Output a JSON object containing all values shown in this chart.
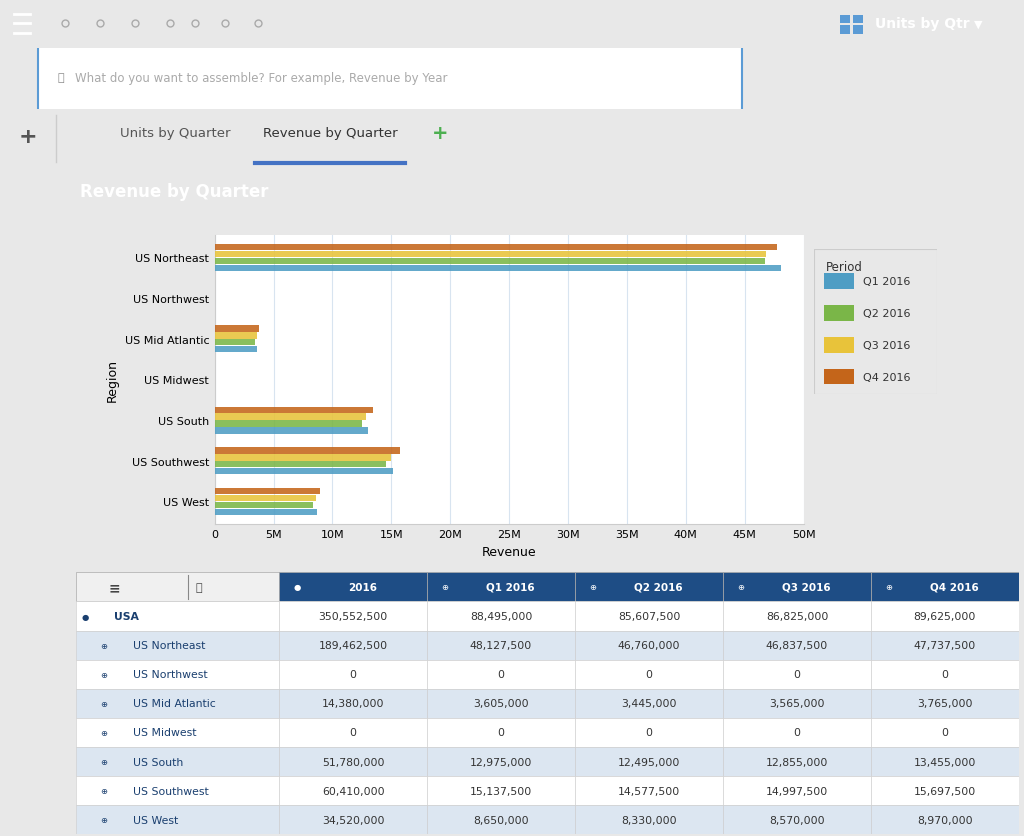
{
  "chart_title": "Revenue by Quarter",
  "tab1": "Units by Quarter",
  "tab2": "Revenue by Quarter",
  "toolbar_title": "Units by Qtr",
  "search_placeholder": "What do you want to assemble? For example, Revenue by Year",
  "regions": [
    "US Northeast",
    "US Northwest",
    "US Mid Atlantic",
    "US Midwest",
    "US South",
    "US Southwest",
    "US West"
  ],
  "quarters": [
    "Q1 2016",
    "Q2 2016",
    "Q3 2016",
    "Q4 2016"
  ],
  "quarter_colors": [
    "#4e9dc4",
    "#7ab648",
    "#e8c33a",
    "#c4651a"
  ],
  "data": {
    "US West": [
      8650000,
      8330000,
      8570000,
      8970000
    ],
    "US Southwest": [
      15137500,
      14577500,
      14997500,
      15697500
    ],
    "US South": [
      12975000,
      12495000,
      12855000,
      13455000
    ],
    "US Midwest": [
      0,
      0,
      0,
      0
    ],
    "US Mid Atlantic": [
      3605000,
      3445000,
      3565000,
      3765000
    ],
    "US Northwest": [
      0,
      0,
      0,
      0
    ],
    "US Northeast": [
      48127500,
      46760000,
      46837500,
      47737500
    ]
  },
  "table_headers": [
    "2016",
    "Q1 2016",
    "Q2 2016",
    "Q3 2016",
    "Q4 2016"
  ],
  "table_rows": [
    [
      "USA",
      "350,552,500",
      "88,495,000",
      "85,607,500",
      "86,825,000",
      "89,625,000"
    ],
    [
      "US Northeast",
      "189,462,500",
      "48,127,500",
      "46,760,000",
      "46,837,500",
      "47,737,500"
    ],
    [
      "US Northwest",
      "0",
      "0",
      "0",
      "0",
      "0"
    ],
    [
      "US Mid Atlantic",
      "14,380,000",
      "3,605,000",
      "3,445,000",
      "3,565,000",
      "3,765,000"
    ],
    [
      "US Midwest",
      "0",
      "0",
      "0",
      "0",
      "0"
    ],
    [
      "US South",
      "51,780,000",
      "12,975,000",
      "12,495,000",
      "12,855,000",
      "13,455,000"
    ],
    [
      "US Southwest",
      "60,410,000",
      "15,137,500",
      "14,577,500",
      "14,997,500",
      "15,697,500"
    ],
    [
      "US West",
      "34,520,000",
      "8,650,000",
      "8,330,000",
      "8,570,000",
      "8,970,000"
    ]
  ],
  "x_max": 50000000,
  "x_ticks": [
    0,
    5000000,
    10000000,
    15000000,
    20000000,
    25000000,
    30000000,
    35000000,
    40000000,
    45000000,
    50000000
  ],
  "x_tick_labels": [
    "0",
    "5M",
    "10M",
    "15M",
    "20M",
    "25M",
    "30M",
    "35M",
    "40M",
    "45M",
    "50M"
  ],
  "xlabel": "Revenue",
  "ylabel": "Region",
  "legend_title": "Period",
  "toolbar_bg": "#3c3c3c",
  "search_bg": "#e8e8e8",
  "tab_bg": "#f0f0f0",
  "left_bar_color": "#4472a8",
  "header_bg": "#1d4572",
  "chart_bg": "#eaf0f6",
  "chart_plot_bg": "#ffffff",
  "grid_color": "#d8e4f0",
  "tab_underline": "#4472c4",
  "search_border": "#5b9bd5",
  "table_header_bg": "#1e4d85",
  "table_row_even": "#ffffff",
  "table_row_odd": "#dce6f1",
  "table_label_color": "#1a3f6f",
  "table_value_color": "#333333"
}
